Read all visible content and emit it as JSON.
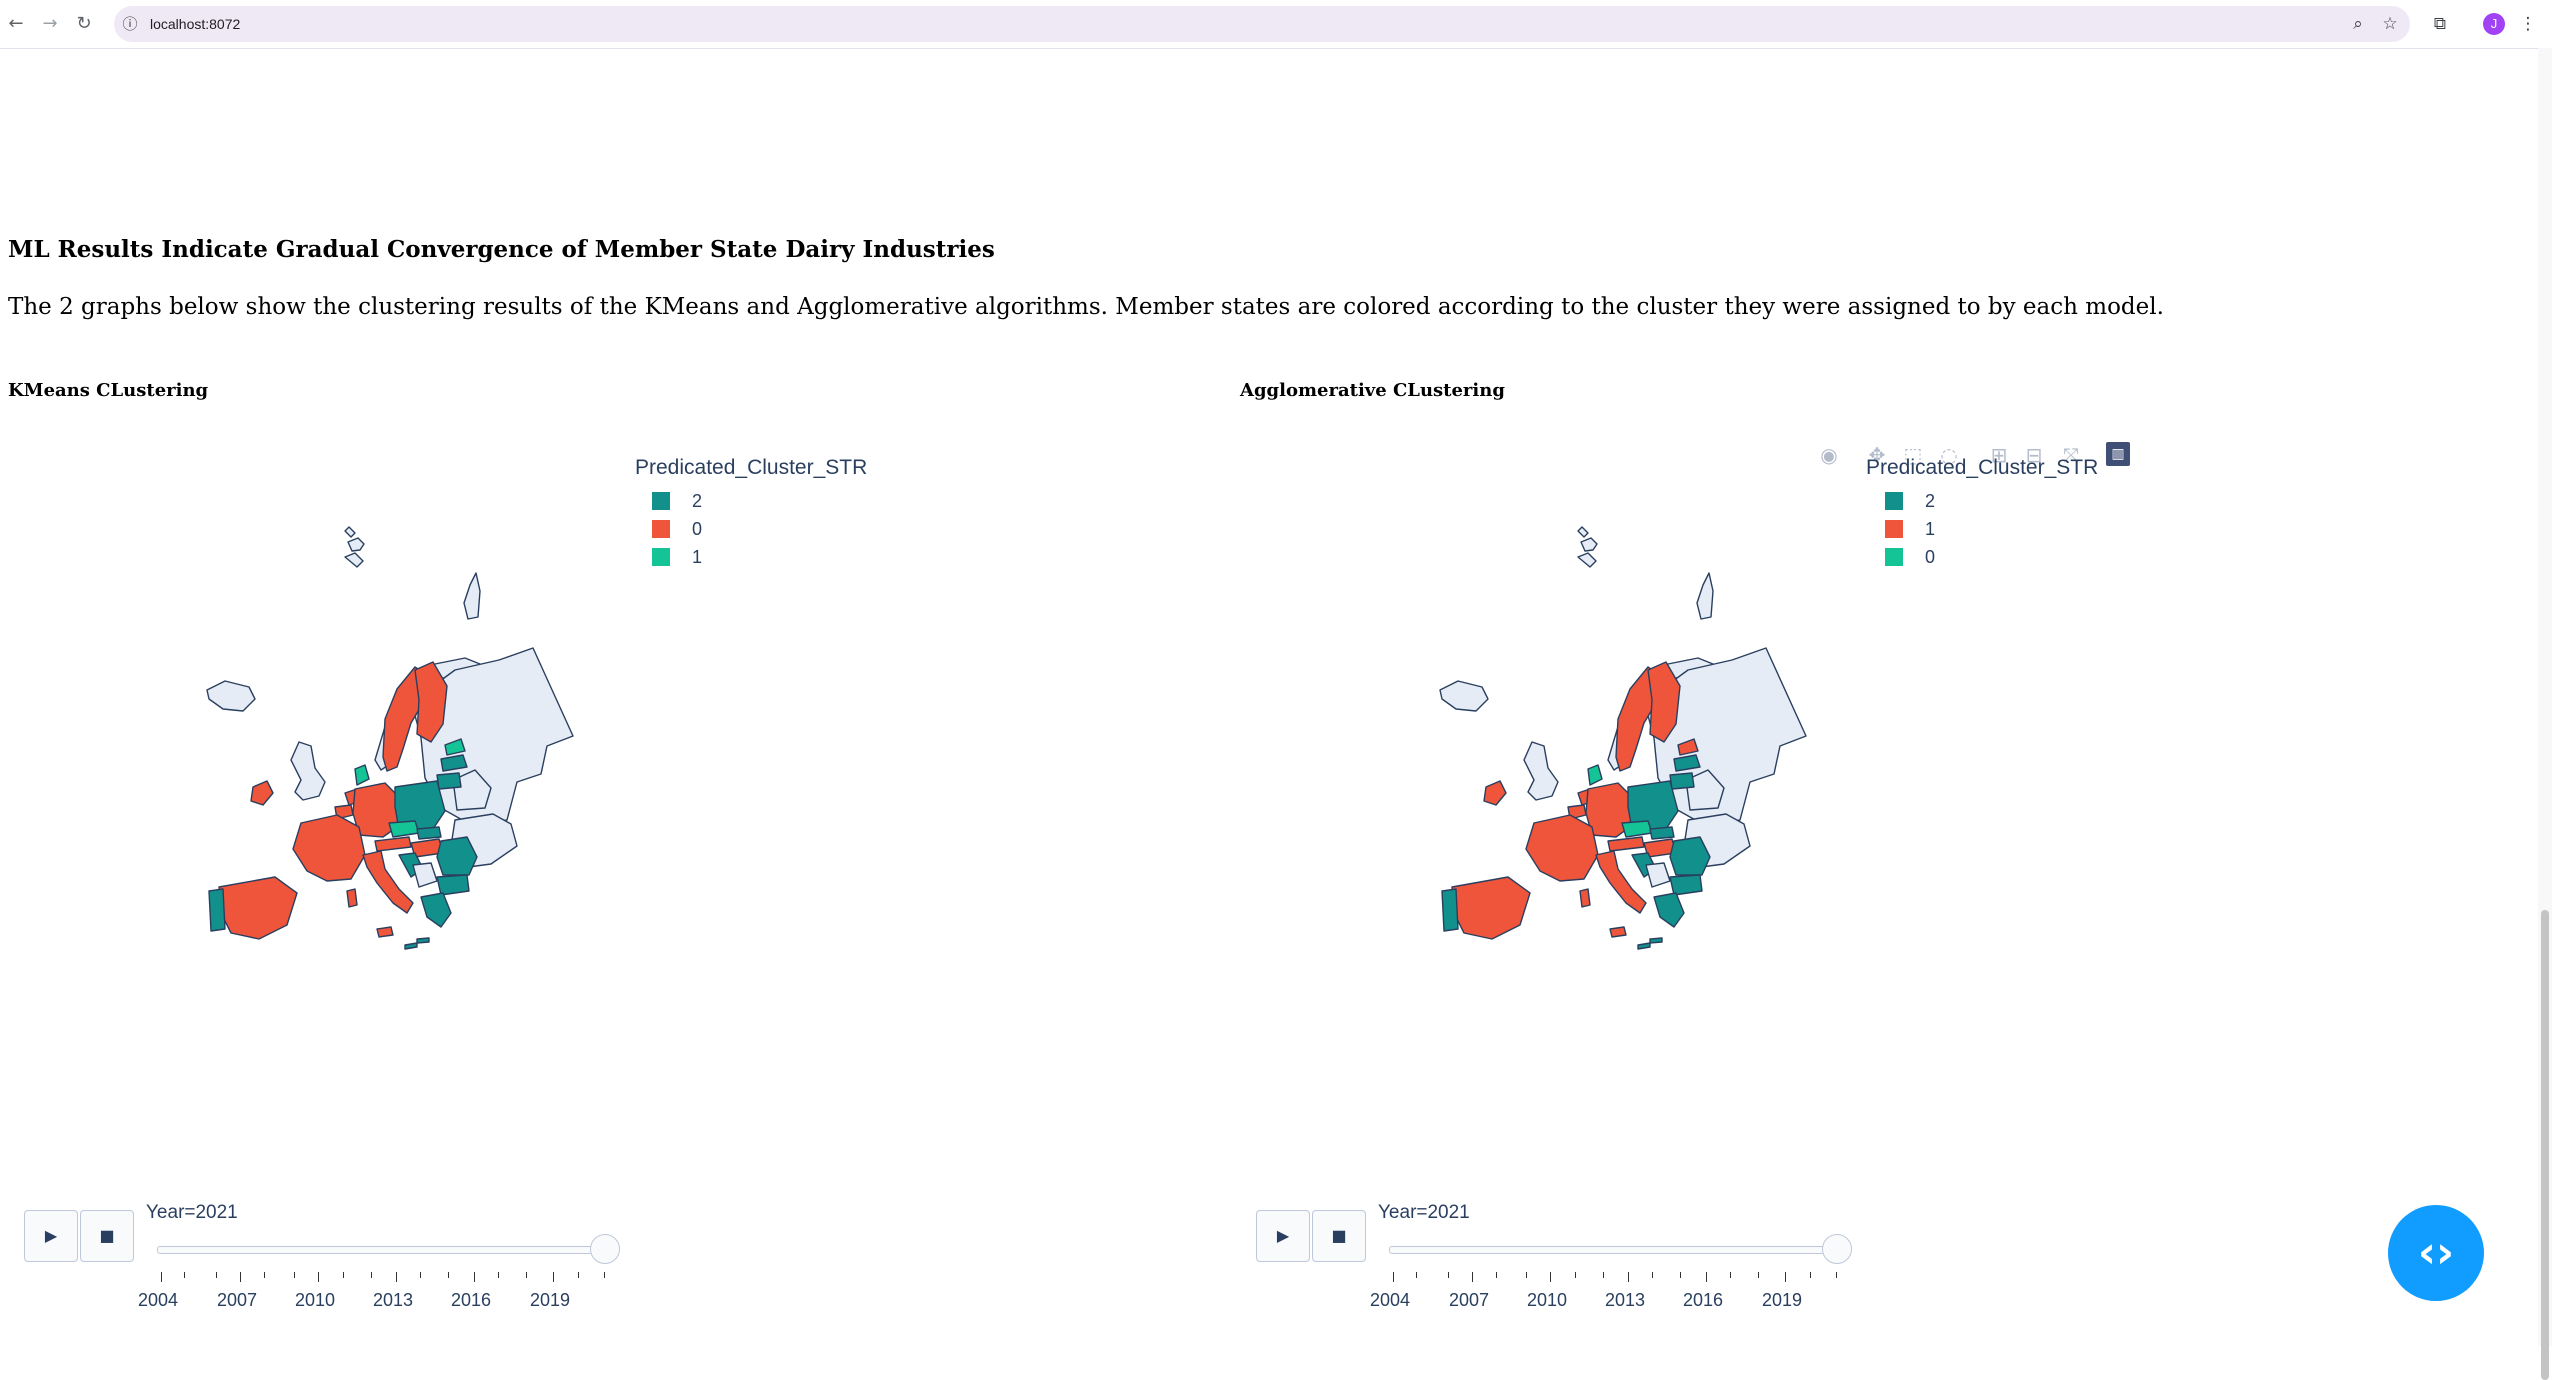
{
  "browser": {
    "url": "localhost:8072",
    "profile_initial": "J",
    "icons": [
      "back-icon",
      "forward-icon",
      "reload-icon",
      "site-info-icon",
      "zoom-icon",
      "bookmark-star-icon",
      "extensions-icon",
      "menu-icon"
    ]
  },
  "page": {
    "section_title": "ML Results Indicate Gradual Convergence of Member State Dairy Industries",
    "intro": "The 2 graphs below show the clustering results of the KMeans and Agglomerative algorithms. Member states are colored according to the cluster they were assigned to by each model."
  },
  "graphs": [
    {
      "title": "KMeans CLustering",
      "legend_title": "Predicated_Cluster_STR",
      "legend": [
        {
          "label": "2",
          "color": "#12908c"
        },
        {
          "label": "0",
          "color": "#ef553b"
        },
        {
          "label": "1",
          "color": "#15c496"
        }
      ],
      "animation": {
        "current_label": "Year=2021",
        "ticks": [
          "2004",
          "2007",
          "2010",
          "2013",
          "2016",
          "2019"
        ],
        "position": 1.0
      }
    },
    {
      "title": "Agglomerative CLustering",
      "legend_title": "Predicated_Cluster_STR",
      "legend": [
        {
          "label": "2",
          "color": "#12908c"
        },
        {
          "label": "1",
          "color": "#ef553b"
        },
        {
          "label": "0",
          "color": "#15c496"
        }
      ],
      "animation": {
        "current_label": "Year=2021",
        "ticks": [
          "2004",
          "2007",
          "2010",
          "2013",
          "2016",
          "2019"
        ],
        "position": 1.0
      }
    }
  ],
  "colors": {
    "no_data": "#e5ecf6",
    "border": "#2a3f5f",
    "accent": "#119dff"
  },
  "modebar": [
    "camera-icon",
    "pan-icon",
    "box-select-icon",
    "lasso-icon",
    "zoom-in-icon",
    "zoom-out-icon",
    "autoscale-icon",
    "plotly-logo-icon"
  ],
  "fab": {
    "icon": "code-icon"
  }
}
